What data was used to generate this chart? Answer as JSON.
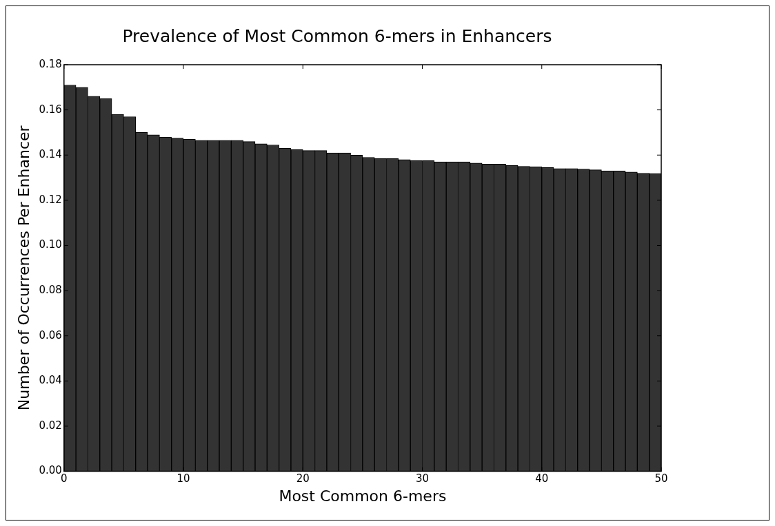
{
  "chart_data": {
    "type": "histogram",
    "title": "Prevalence of Most Common 6-mers in Enhancers",
    "xlabel": "Most Common 6-mers",
    "ylabel": "Number of Occurrences Per Enhancer",
    "bins": [
      0,
      1,
      2,
      3,
      4,
      5,
      6,
      7,
      8,
      9,
      10,
      11,
      12,
      13,
      14,
      15,
      16,
      17,
      18,
      19,
      20,
      21,
      22,
      23,
      24,
      25,
      26,
      27,
      28,
      29,
      30,
      31,
      32,
      33,
      34,
      35,
      36,
      37,
      38,
      39,
      40,
      41,
      42,
      43,
      44,
      45,
      46,
      47,
      48,
      49,
      50
    ],
    "values": [
      0.171,
      0.17,
      0.166,
      0.165,
      0.158,
      0.157,
      0.15,
      0.149,
      0.148,
      0.1475,
      0.147,
      0.1465,
      0.1465,
      0.1465,
      0.1465,
      0.146,
      0.145,
      0.1445,
      0.143,
      0.1425,
      0.142,
      0.142,
      0.141,
      0.141,
      0.14,
      0.139,
      0.1385,
      0.1385,
      0.138,
      0.1375,
      0.1375,
      0.137,
      0.137,
      0.137,
      0.1365,
      0.136,
      0.136,
      0.1355,
      0.135,
      0.1348,
      0.1345,
      0.134,
      0.134,
      0.1338,
      0.1335,
      0.133,
      0.133,
      0.1325,
      0.132,
      0.1318
    ],
    "color": "#333333",
    "xlim": [
      0,
      50
    ],
    "xticks": [
      0,
      10,
      20,
      30,
      40,
      50
    ],
    "ylim": [
      0,
      0.18
    ],
    "yticks": [
      {
        "value": 0,
        "label": "0.00"
      },
      {
        "value": 0.02,
        "label": "0.02"
      },
      {
        "value": 0.04,
        "label": "0.04"
      },
      {
        "value": 0.06,
        "label": "0.06"
      },
      {
        "value": 0.08,
        "label": "0.08"
      },
      {
        "value": 0.1,
        "label": "0.10"
      },
      {
        "value": 0.12,
        "label": "0.12"
      },
      {
        "value": 0.14,
        "label": "0.14"
      },
      {
        "value": 0.16,
        "label": "0.16"
      },
      {
        "value": 0.18,
        "label": "0.18"
      }
    ],
    "grid": false,
    "legend": false
  }
}
